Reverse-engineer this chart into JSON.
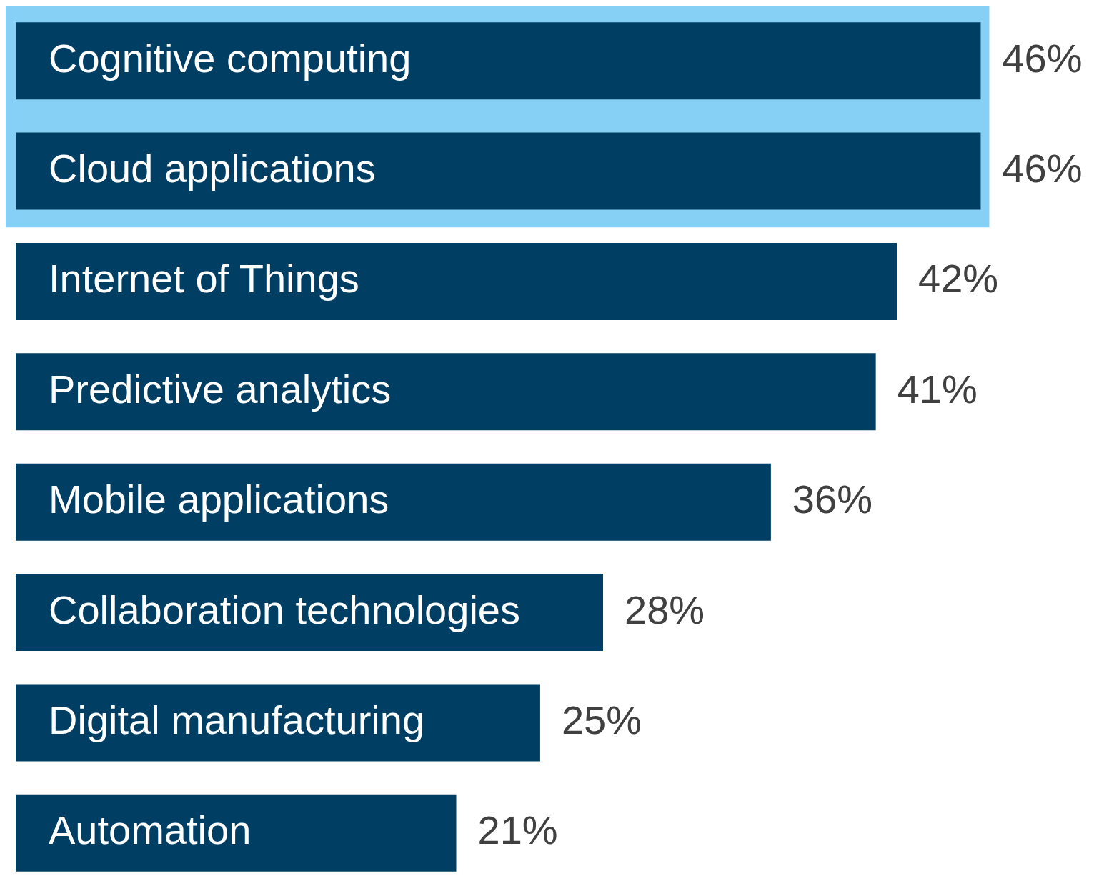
{
  "chart_data": {
    "type": "bar",
    "orientation": "horizontal",
    "categories": [
      "Cognitive computing",
      "Cloud applications",
      "Internet of Things",
      "Predictive analytics",
      "Mobile applications",
      "Collaboration technologies",
      "Digital manufacturing",
      "Automation"
    ],
    "values": [
      46,
      46,
      42,
      41,
      36,
      28,
      25,
      21
    ],
    "value_labels": [
      "46%",
      "46%",
      "42%",
      "41%",
      "36%",
      "28%",
      "25%",
      "21%"
    ],
    "color": "#003f63",
    "bands": [
      {
        "axis": "y",
        "from": "Cognitive computing",
        "to": "Cloud applications",
        "color": "#87d0f5"
      }
    ],
    "legend": false
  }
}
